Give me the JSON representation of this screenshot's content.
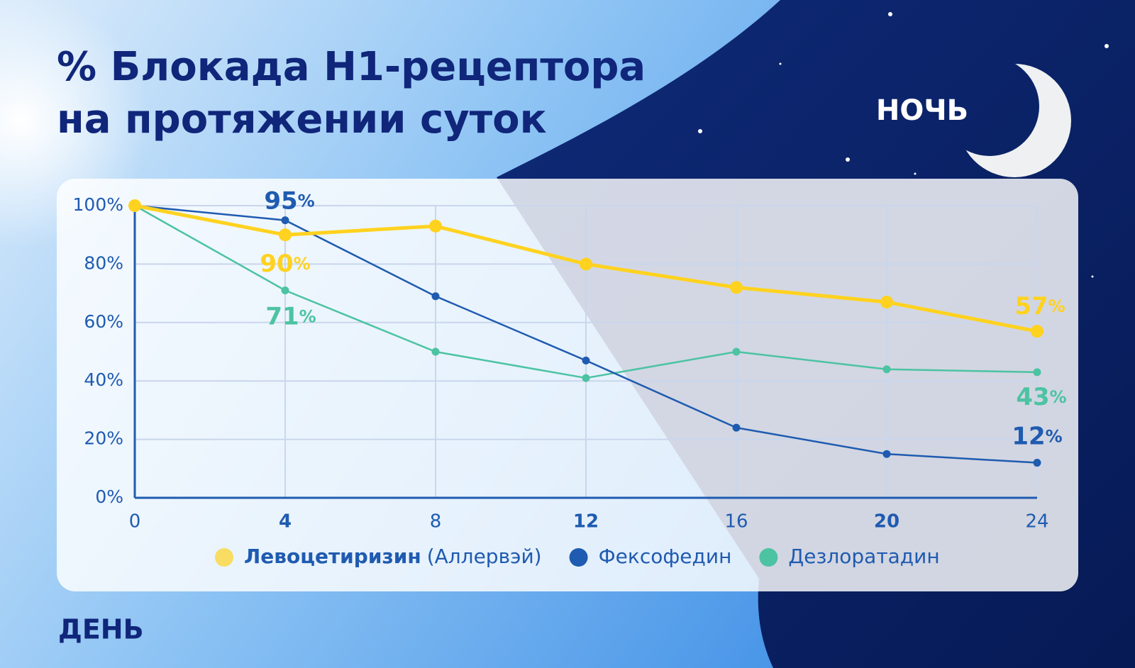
{
  "title": [
    "% Блокада Н1-рецептора",
    "на протяжении суток"
  ],
  "night_label": "НОЧЬ",
  "day_label": "ДЕНЬ",
  "chart_data": {
    "type": "line",
    "x": [
      0,
      4,
      8,
      12,
      16,
      20,
      24
    ],
    "xlim": [
      0,
      24
    ],
    "xticks": [
      0,
      4,
      8,
      12,
      16,
      20,
      24
    ],
    "ylim": [
      0,
      100
    ],
    "yticks": [
      {
        "value": 0,
        "label": "0%"
      },
      {
        "value": 20,
        "label": "20%"
      },
      {
        "value": 40,
        "label": "40%"
      },
      {
        "value": 60,
        "label": "60%"
      },
      {
        "value": 80,
        "label": "80%"
      },
      {
        "value": 100,
        "label": "100%"
      }
    ],
    "grid": true,
    "series": [
      {
        "name": "Левоцетиризин",
        "name_note": "(Аллервэй)",
        "color": "#FFD21F",
        "values": [
          100,
          90,
          93,
          80,
          72,
          67,
          57
        ],
        "value_labels": [
          null,
          "90%",
          null,
          null,
          null,
          null,
          "57%"
        ]
      },
      {
        "name": "Фексофедин",
        "color": "#1F5BB0",
        "values": [
          100,
          95,
          69,
          47,
          24,
          15,
          12
        ],
        "value_labels": [
          null,
          "95%",
          null,
          null,
          null,
          null,
          "12%"
        ]
      },
      {
        "name": "Дезлоратадин",
        "color": "#4CC3A2",
        "values": [
          100,
          71,
          50,
          41,
          50,
          44,
          43
        ],
        "value_labels": [
          null,
          "71%",
          null,
          null,
          null,
          null,
          "43%"
        ]
      }
    ]
  }
}
